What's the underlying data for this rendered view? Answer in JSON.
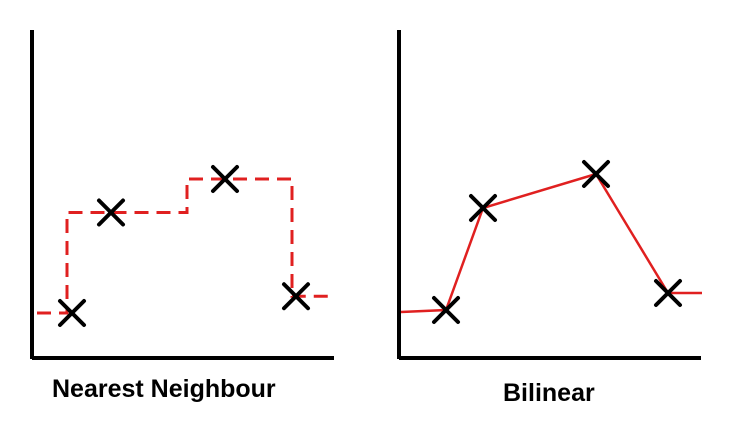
{
  "panels": [
    {
      "caption": "Nearest Neighbour",
      "style": "dashed-step",
      "samples": [
        {
          "x": 1,
          "y": 1.0
        },
        {
          "x": 2,
          "y": 4.0
        },
        {
          "x": 3,
          "y": 5.0
        },
        {
          "x": 4,
          "y": 1.5
        }
      ]
    },
    {
      "caption": "Bilinear",
      "style": "solid-linear",
      "samples": [
        {
          "x": 1,
          "y": 1.0
        },
        {
          "x": 2,
          "y": 4.0
        },
        {
          "x": 3,
          "y": 5.0
        },
        {
          "x": 4,
          "y": 1.5
        }
      ]
    }
  ],
  "colors": {
    "axis": "#000000",
    "marker": "#000000",
    "interpolation_line": "#e02020",
    "background": "#ffffff"
  },
  "marker_icon": "x-cross-icon"
}
